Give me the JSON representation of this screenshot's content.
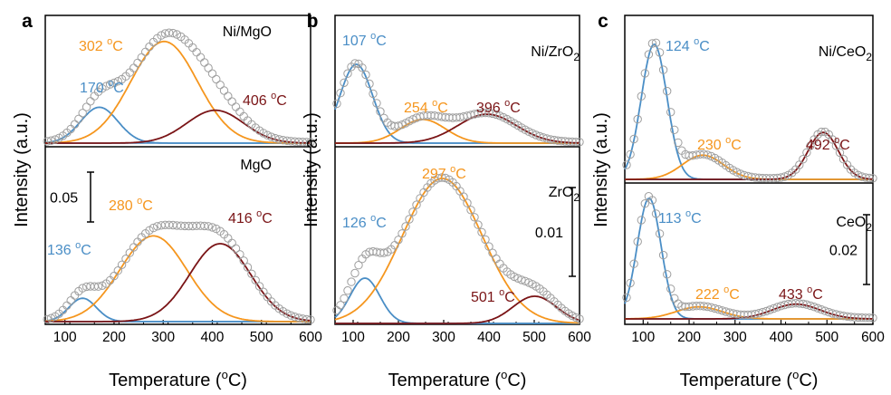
{
  "colors": {
    "blue": "#4a8ec6",
    "orange": "#f5961e",
    "darkred": "#7a1416",
    "axis": "#000000",
    "baseline_blue": "#4a8ec6",
    "data_marker": "#9e9e9e"
  },
  "chart_data": [
    {
      "type": "line",
      "panel": "a",
      "xlabel": "Temperature (oC)",
      "xlabel_base": "Temperature (",
      "xlabel_sup": "o",
      "xlabel_end": "C)",
      "ylabel": "Intensity (a.u.)",
      "xlim": [
        60,
        600
      ],
      "xticks": [
        "100",
        "200",
        "300",
        "400",
        "500",
        "600"
      ],
      "scale_bar": "0.05",
      "subplots": [
        {
          "sample": "Ni/MgO",
          "sample_base": "Ni/MgO",
          "sample_sub": "",
          "baseline": 0.0,
          "peaks": [
            {
              "label": "170 oC",
              "center": 170,
              "height": 0.24,
              "width": 38,
              "color": "blue"
            },
            {
              "label": "302 oC",
              "center": 302,
              "height": 0.68,
              "width": 68,
              "color": "orange"
            },
            {
              "label": "406 oC",
              "center": 406,
              "height": 0.22,
              "width": 58,
              "color": "darkred"
            }
          ]
        },
        {
          "sample": "MgO",
          "sample_base": "MgO",
          "sample_sub": "",
          "baseline": 0.0,
          "peaks": [
            {
              "label": "136 oC",
              "center": 136,
              "height": 0.12,
              "width": 28,
              "color": "blue"
            },
            {
              "label": "280 oC",
              "center": 280,
              "height": 0.44,
              "width": 68,
              "color": "orange"
            },
            {
              "label": "416 oC",
              "center": 416,
              "height": 0.4,
              "width": 62,
              "color": "darkred"
            }
          ]
        }
      ]
    },
    {
      "type": "line",
      "panel": "b",
      "xlabel": "Temperature (oC)",
      "xlabel_base": "Temperature (",
      "xlabel_sup": "o",
      "xlabel_end": "C)",
      "ylabel": "Intensity (a.u.)",
      "xlim": [
        60,
        600
      ],
      "xticks": [
        "100",
        "200",
        "300",
        "400",
        "500",
        "600"
      ],
      "scale_bar": "0.01",
      "subplots": [
        {
          "sample": "Ni/ZrO2",
          "sample_base": "Ni/ZrO",
          "sample_sub": "2",
          "baseline": 0.0,
          "peaks": [
            {
              "label": "107 oC",
              "center": 107,
              "height": 0.6,
              "width": 36,
              "color": "blue"
            },
            {
              "label": "254 oC",
              "center": 254,
              "height": 0.18,
              "width": 50,
              "color": "orange"
            },
            {
              "label": "396 oC",
              "center": 396,
              "height": 0.22,
              "width": 65,
              "color": "darkred"
            }
          ]
        },
        {
          "sample": "ZrO2",
          "sample_base": "ZrO",
          "sample_sub": "2",
          "baseline": 0.0,
          "peaks": [
            {
              "label": "126 oC",
              "center": 126,
              "height": 0.25,
              "width": 33,
              "color": "blue"
            },
            {
              "label": "297 oC",
              "center": 297,
              "height": 0.8,
              "width": 88,
              "color": "orange"
            },
            {
              "label": "501 oC",
              "center": 501,
              "height": 0.15,
              "width": 48,
              "color": "darkred"
            }
          ]
        }
      ]
    },
    {
      "type": "line",
      "panel": "c",
      "xlabel": "Temperature (oC)",
      "xlabel_base": "Temperature (",
      "xlabel_sup": "o",
      "xlabel_end": "C)",
      "ylabel": "Intensity (a.u.)",
      "xlim": [
        60,
        600
      ],
      "xticks": [
        "100",
        "200",
        "300",
        "400",
        "500",
        "600"
      ],
      "scale_bar": "0.02",
      "subplots": [
        {
          "sample": "Ni/CeO2",
          "sample_base": "Ni/CeO",
          "sample_sub": "2",
          "baseline": 0.0,
          "peaks": [
            {
              "label": "124 oC",
              "center": 124,
              "height": 0.95,
              "width": 28,
              "color": "blue"
            },
            {
              "label": "230 oC",
              "center": 230,
              "height": 0.17,
              "width": 45,
              "color": "orange"
            },
            {
              "label": "492 oC",
              "center": 492,
              "height": 0.33,
              "width": 33,
              "color": "darkred"
            }
          ]
        },
        {
          "sample": "CeO2",
          "sample_base": "CeO",
          "sample_sub": "2",
          "baseline": 0.0,
          "peaks": [
            {
              "label": "113 oC",
              "center": 113,
              "height": 0.9,
              "width": 26,
              "color": "blue"
            },
            {
              "label": "222 oC",
              "center": 222,
              "height": 0.09,
              "width": 50,
              "color": "orange"
            },
            {
              "label": "433 oC",
              "center": 433,
              "height": 0.11,
              "width": 52,
              "color": "darkred"
            }
          ]
        }
      ]
    }
  ]
}
